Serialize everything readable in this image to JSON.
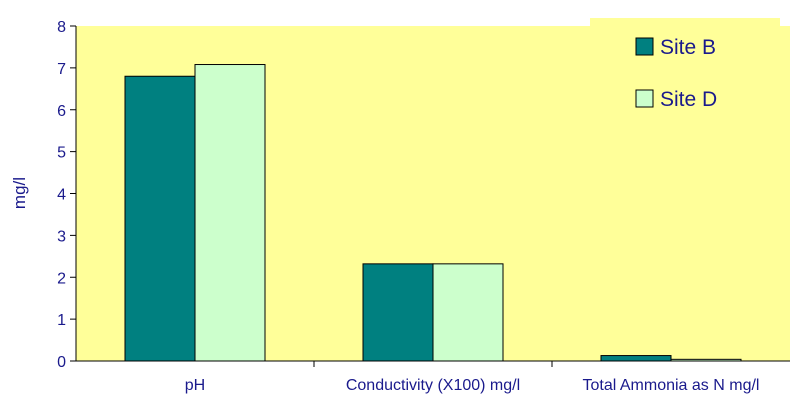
{
  "chart_data": {
    "type": "bar",
    "categories": [
      "pH",
      "Conductivity (X100) mg/l",
      "Total Ammonia as N mg/l"
    ],
    "series": [
      {
        "name": "Site B",
        "values": [
          6.8,
          2.32,
          0.13
        ],
        "color": "#008080"
      },
      {
        "name": "Site D",
        "values": [
          7.08,
          2.32,
          0.04
        ],
        "color": "#ccffcc"
      }
    ],
    "ylabel": "mg/l",
    "xlabel": "",
    "ylim": [
      0,
      8
    ],
    "yticks": [
      "0",
      "1",
      "2",
      "3",
      "4",
      "5",
      "6",
      "7",
      "8"
    ],
    "grid": false,
    "legend_position": "top-right",
    "plot_background": "#ffff99",
    "axis_text_color": "#1a1a8c"
  }
}
